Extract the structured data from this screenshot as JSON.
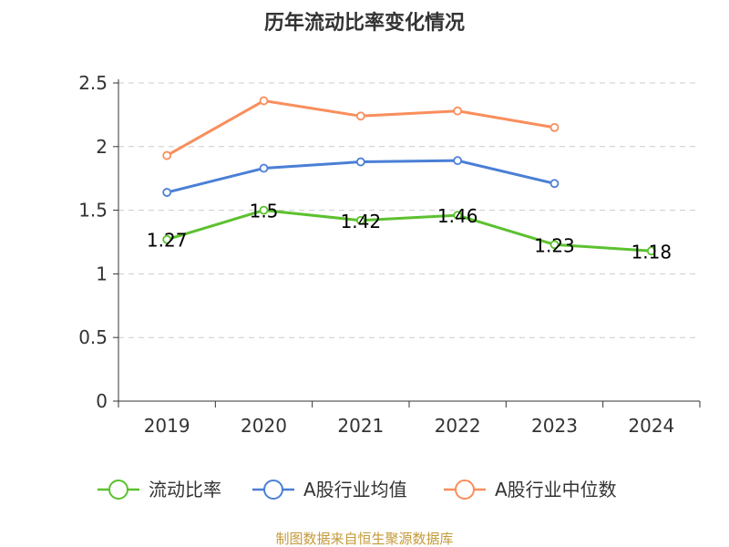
{
  "chart_data": {
    "type": "line",
    "title": "历年流动比率变化情况",
    "categories": [
      "2019",
      "2020",
      "2021",
      "2022",
      "2023",
      "2024"
    ],
    "ylim": [
      0,
      2.5
    ],
    "yticks": [
      "0",
      "0.5",
      "1",
      "1.5",
      "2",
      "2.5"
    ],
    "grid": true,
    "legend_position": "bottom",
    "series": [
      {
        "name": "流动比率",
        "color": "#5cc12f",
        "values": [
          1.27,
          1.5,
          1.42,
          1.46,
          1.23,
          1.18
        ],
        "labels": [
          "1.27",
          "1.5",
          "1.42",
          "1.46",
          "1.23",
          "1.18"
        ]
      },
      {
        "name": "A股行业均值",
        "color": "#4a7fd6",
        "values": [
          1.64,
          1.83,
          1.88,
          1.89,
          1.71,
          null
        ]
      },
      {
        "name": "A股行业中位数",
        "color": "#f98e5c",
        "values": [
          1.93,
          2.36,
          2.24,
          2.28,
          2.15,
          null
        ]
      }
    ]
  },
  "source_note": "制图数据来自恒生聚源数据库"
}
